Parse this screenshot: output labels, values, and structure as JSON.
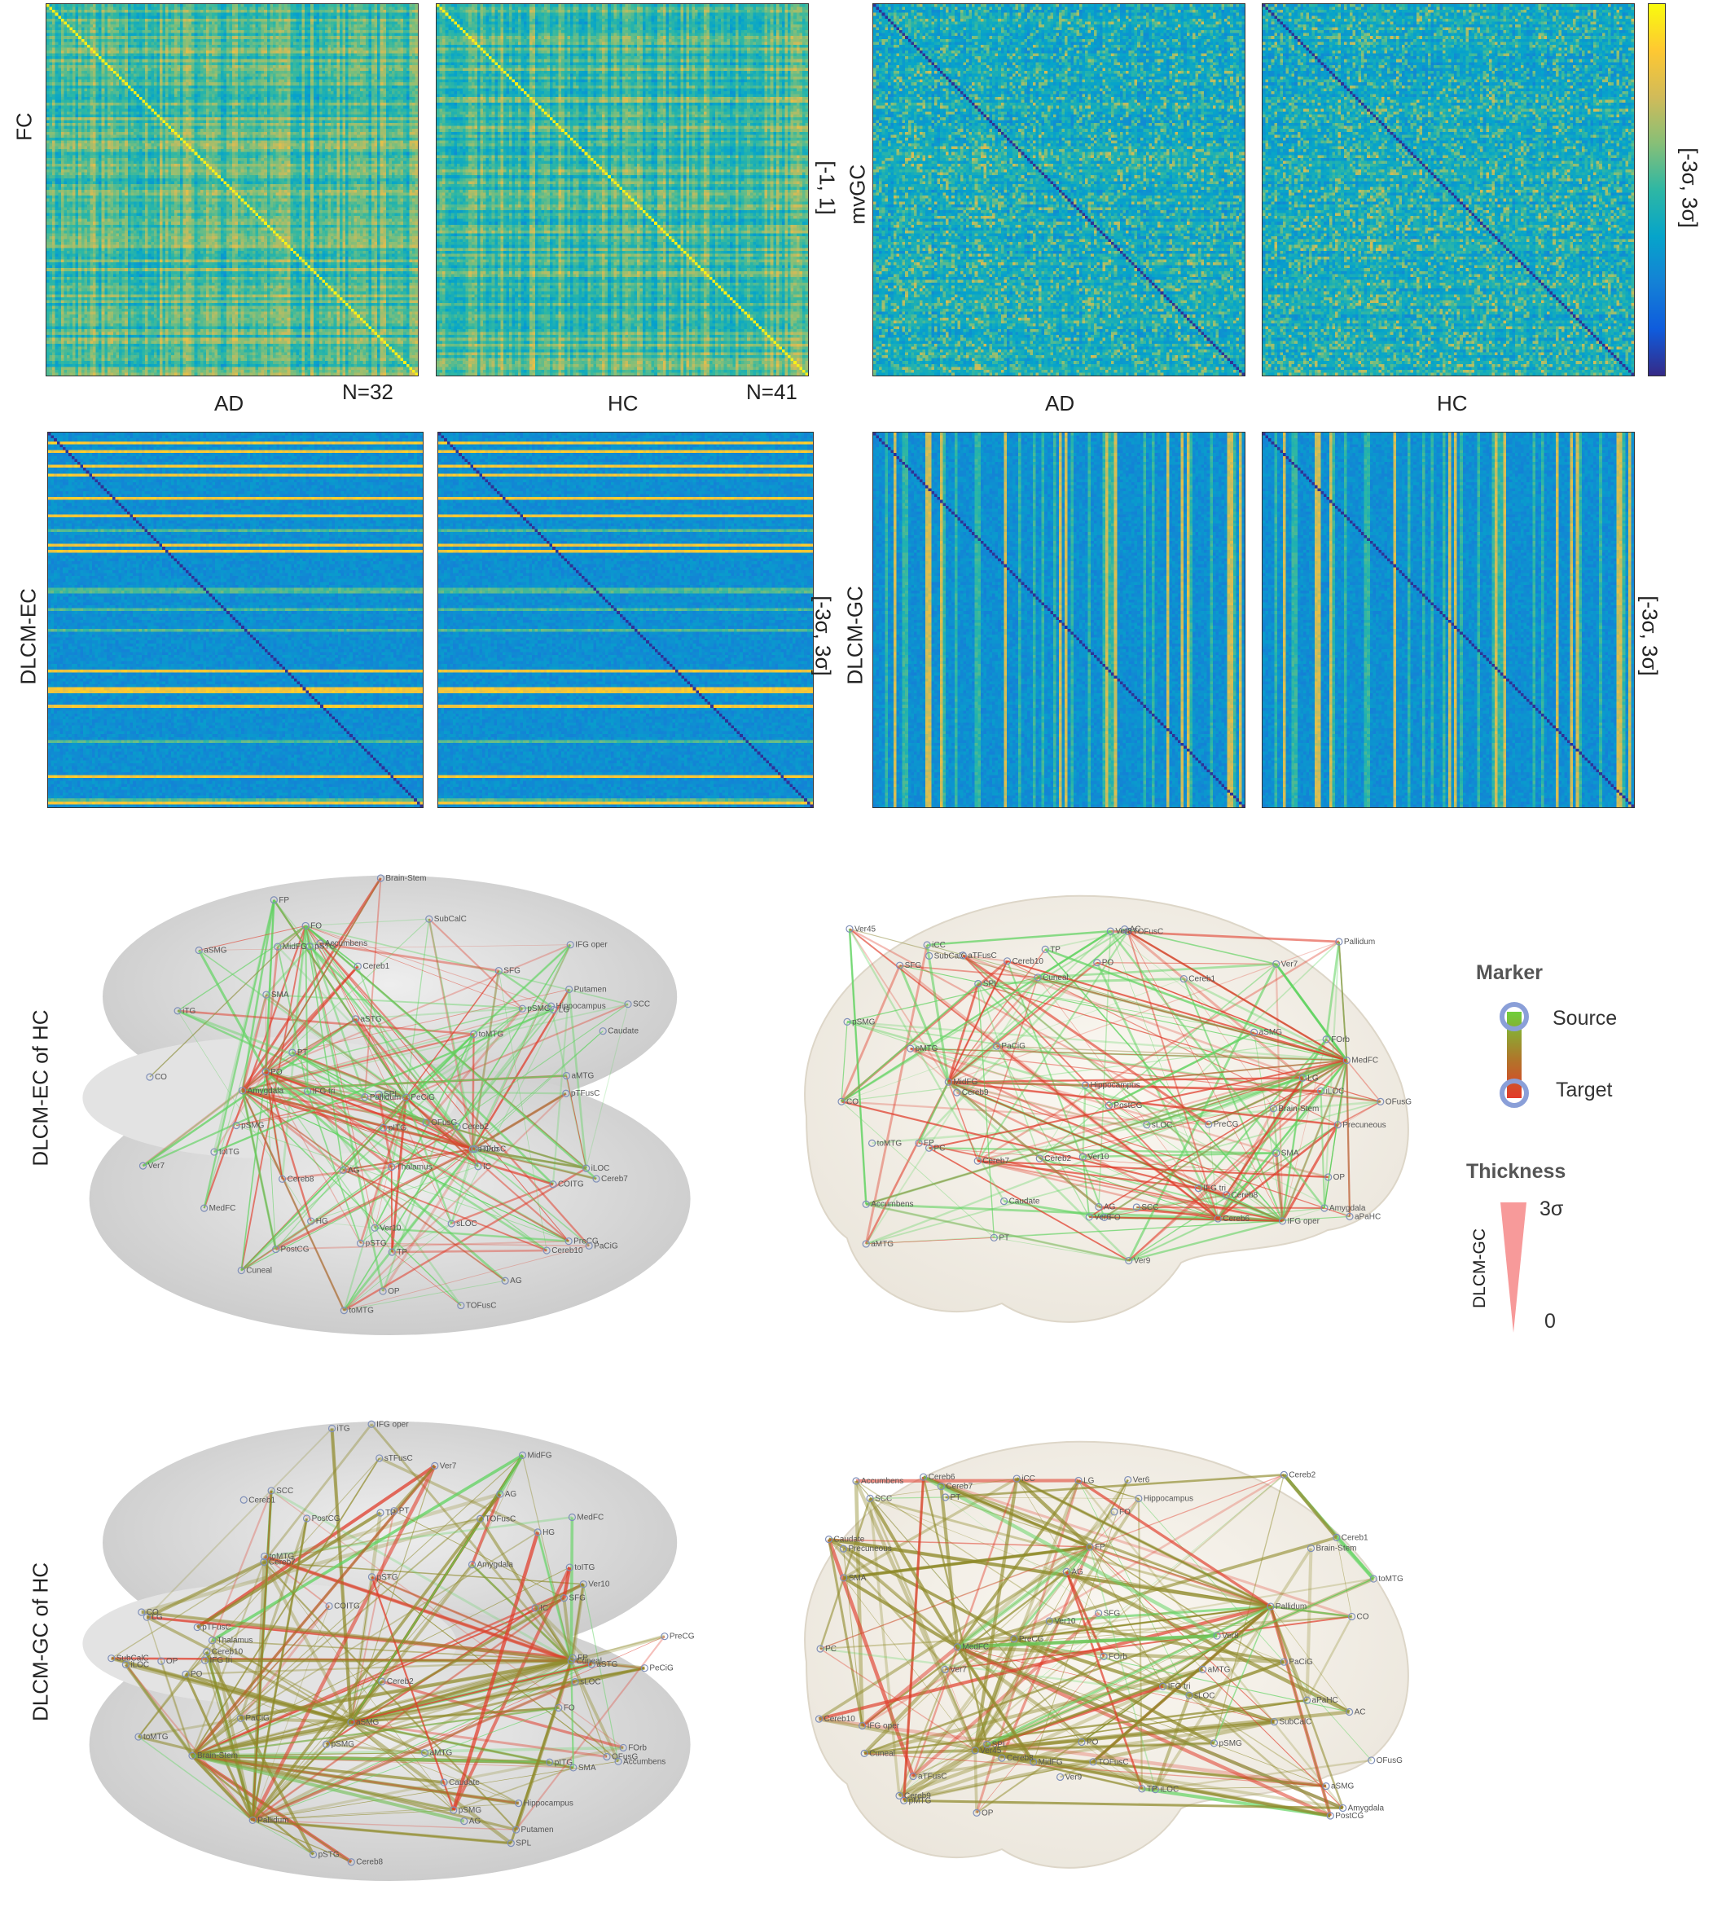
{
  "matrix_section": {
    "fc": {
      "row_label": "FC",
      "range_label": "[-1, 1]",
      "panels": [
        {
          "group": "AD",
          "n_label": "N=32"
        },
        {
          "group": "HC",
          "n_label": "N=41"
        }
      ]
    },
    "mvgc": {
      "row_label": "mvGC",
      "range_label": "[-3σ, 3σ]",
      "panels": [
        {
          "group": "AD"
        },
        {
          "group": "HC"
        }
      ]
    },
    "dlcm_ec": {
      "row_label": "DLCM-EC",
      "range_label": "[-3σ, 3σ]"
    },
    "dlcm_gc": {
      "row_label": "DLCM-GC",
      "range_label": "[-3σ, 3σ]"
    }
  },
  "network_section": {
    "rows": [
      {
        "label": "DLCM-EC of HC"
      },
      {
        "label": "DLCM-GC of HC"
      }
    ],
    "node_labels_axial": [
      "pSTG",
      "aMTG",
      "aSTG",
      "toMTG",
      "pSMG",
      "aSMG",
      "pITG",
      "iLOC",
      "AG",
      "PO",
      "HG",
      "COITG",
      "IFG oper",
      "IFG tri",
      "TP",
      "FO",
      "MidFG",
      "PreCG",
      "IC",
      "Cereb1",
      "TOFusC",
      "OFusG",
      "Cereb2",
      "sLOC",
      "Cereb8",
      "SPL",
      "pTFusC",
      "sTFusC",
      "Hippocampus",
      "Putamen",
      "Amygdala",
      "FOrb",
      "OP",
      "FP",
      "Cuneal",
      "SCC",
      "LG",
      "Thalamus",
      "Caudate",
      "Accumbens",
      "SFG",
      "PaCiG",
      "MedFC",
      "PeCiG",
      "Ver7",
      "Ver10",
      "Brain-Stem",
      "SubCalC",
      "SMA",
      "Cereb10",
      "Pallidum",
      "Cereb7",
      "PostCG",
      "iTG",
      "PT",
      "CO",
      "AG",
      "toITG",
      "pSMG",
      "pSTG",
      "toMTG"
    ],
    "node_labels_sagittal": [
      "SPL",
      "PostCG",
      "PreCG",
      "SMA",
      "SFG",
      "MidFG",
      "sLOC",
      "Precuneous",
      "aSMG",
      "AG",
      "pSMG",
      "PC",
      "Cuneal",
      "PO",
      "AC",
      "PaCiG",
      "SCC",
      "CO",
      "IFG oper",
      "IFG tri",
      "FP",
      "OP",
      "iCC",
      "toMTG",
      "PT",
      "Caudate",
      "FO",
      "iLOC",
      "LG",
      "Ver45",
      "Pallidum",
      "Accumbens",
      "OFusG",
      "Ver6",
      "TOFusC",
      "pMTG",
      "Hippocampus",
      "SubCalC",
      "FOrb",
      "MedFC",
      "Cereb6",
      "Amygdala",
      "aMTG",
      "Ver7",
      "Cereb1",
      "Ver10",
      "aPaHC",
      "TP",
      "Ver8",
      "Ver9",
      "Brain-Stem",
      "Cereb2",
      "Cereb10",
      "aTFusC",
      "Cereb7",
      "Cereb8",
      "Cereb9"
    ]
  },
  "legend": {
    "marker_title": "Marker",
    "source_label": "Source",
    "target_label": "Target",
    "thickness_title": "Thickness",
    "measure_label": "DLCM-GC",
    "max_label": "3σ",
    "min_label": "0"
  },
  "colors": {
    "edge_source": "#5fd35f",
    "edge_target": "#e03c2a",
    "marker_ring": "#8a9fd8",
    "thickness_wedge": "#f79a9a"
  }
}
